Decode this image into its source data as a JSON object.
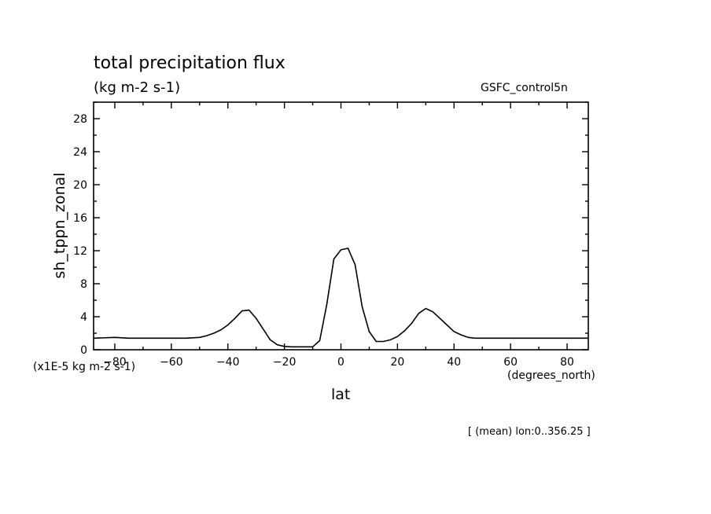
{
  "header": {
    "title": "total precipitation flux",
    "units": "(kg m-2 s-1)",
    "run_name": "GSFC_control5n"
  },
  "axes_text": {
    "ylabel": "sh_tppn_zonal",
    "y_scale_note": "(x1E-5 kg m-2 s-1)",
    "xlabel": "lat",
    "x_units": "(degrees_north)"
  },
  "footnote": "[ (mean) lon:0..356.25 ]",
  "chart_data": {
    "type": "line",
    "title": "total precipitation flux",
    "subtitle": "(kg m-2 s-1)",
    "xlabel": "lat",
    "ylabel": "sh_tppn_zonal",
    "xlim": [
      -87.5,
      87.5
    ],
    "ylim": [
      0,
      30
    ],
    "xticks": [
      -80,
      -60,
      -40,
      -20,
      0,
      20,
      40,
      60,
      80
    ],
    "xtick_labels": [
      "−80",
      "−60",
      "−40",
      "−20",
      "0",
      "20",
      "40",
      "60",
      "80"
    ],
    "yticks": [
      0,
      4,
      8,
      12,
      16,
      20,
      24,
      28
    ],
    "ytick_labels": [
      "0",
      "4",
      "8",
      "12",
      "16",
      "20",
      "24",
      "28"
    ],
    "grid": false,
    "legend": "none",
    "series": [
      {
        "x": [
          -87.5,
          -80,
          -75,
          -70,
          -65,
          -60,
          -55,
          -50,
          -47.5,
          -45,
          -42.5,
          -40,
          -37.5,
          -35,
          -32.5,
          -30,
          -27.5,
          -25,
          -22.5,
          -20,
          -17.5,
          -15,
          -12.5,
          -10,
          -7.5,
          -5,
          -2.5,
          0,
          2.5,
          5,
          7.5,
          10,
          12.5,
          15,
          17.5,
          20,
          22.5,
          25,
          27.5,
          30,
          32.5,
          35,
          37.5,
          40,
          42.5,
          45,
          47.5,
          50,
          52.5,
          55,
          57.5,
          60,
          65,
          70,
          75,
          80,
          87.5
        ],
        "y": [
          1.4,
          1.5,
          1.4,
          1.4,
          1.4,
          1.4,
          1.4,
          1.5,
          1.7,
          2.0,
          2.4,
          3.0,
          3.8,
          4.7,
          4.8,
          3.8,
          2.5,
          1.2,
          0.6,
          0.4,
          0.35,
          0.35,
          0.35,
          0.35,
          1.1,
          5.5,
          11.0,
          12.1,
          12.3,
          10.3,
          5.2,
          2.2,
          1.0,
          1.0,
          1.2,
          1.6,
          2.3,
          3.2,
          4.4,
          5.0,
          4.6,
          3.8,
          3.0,
          2.2,
          1.8,
          1.5,
          1.4,
          1.4,
          1.4,
          1.4,
          1.4,
          1.4,
          1.4,
          1.4,
          1.4,
          1.4,
          1.4
        ]
      }
    ]
  }
}
